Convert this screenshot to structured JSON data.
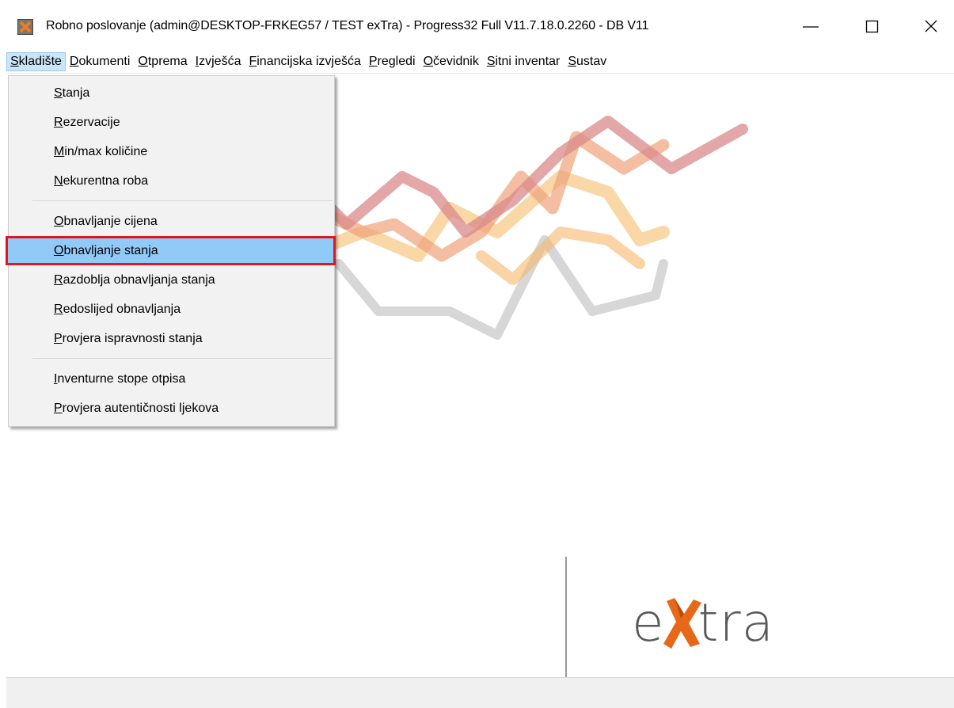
{
  "window": {
    "title": "Robno poslovanje (admin@DESKTOP-FRKEG57 / TEST exTra) - Progress32 Full V11.7.18.0.2260 - DB V11"
  },
  "menubar": {
    "items": [
      "Skladište",
      "Dokumenti",
      "Otprema",
      "Izvješća",
      "Financijska izvješća",
      "Pregledi",
      "Očevidnik",
      "Sitni inventar",
      "Sustav"
    ]
  },
  "dropdown": {
    "groups": [
      [
        "Stanja",
        "Rezervacije",
        "Min/max količine",
        "Nekurentna roba"
      ],
      [
        "Obnavljanje cijena",
        "Obnavljanje stanja",
        "Razdoblja obnavljanja stanja",
        "Redoslijed obnavljanja",
        "Provjera ispravnosti stanja"
      ],
      [
        "Inventurne stope otpisa",
        "Provjera autentičnosti ljekova"
      ]
    ]
  },
  "logo": {
    "parts": [
      "e",
      "tra"
    ]
  }
}
